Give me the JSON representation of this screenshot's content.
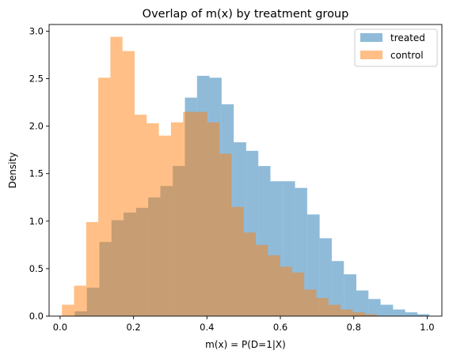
{
  "chart_data": {
    "type": "bar",
    "title": "Overlap of m(x) by treatment group",
    "xlabel": "m(x) = P(D=1|X)",
    "ylabel": "Density",
    "xlim": [
      -0.03,
      1.04
    ],
    "ylim": [
      0,
      3.07
    ],
    "xticks": [
      "0.0",
      "0.2",
      "0.4",
      "0.6",
      "0.8",
      "1.0"
    ],
    "xtick_values": [
      0.0,
      0.2,
      0.4,
      0.6,
      0.8,
      1.0
    ],
    "yticks": [
      "0.0",
      "0.5",
      "1.0",
      "1.5",
      "2.0",
      "2.5",
      "3.0"
    ],
    "ytick_values": [
      0.0,
      0.5,
      1.0,
      1.5,
      2.0,
      2.5,
      3.0
    ],
    "grid": false,
    "legend_position": "top-right",
    "series": [
      {
        "name": "treated",
        "color": "#1f77b4",
        "alpha": 0.5,
        "bins": [
          {
            "x0": 0.04,
            "x1": 0.073,
            "value": 0.05
          },
          {
            "x0": 0.073,
            "x1": 0.107,
            "value": 0.3
          },
          {
            "x0": 0.107,
            "x1": 0.14,
            "value": 0.78
          },
          {
            "x0": 0.14,
            "x1": 0.173,
            "value": 1.01
          },
          {
            "x0": 0.173,
            "x1": 0.207,
            "value": 1.09
          },
          {
            "x0": 0.207,
            "x1": 0.24,
            "value": 1.14
          },
          {
            "x0": 0.24,
            "x1": 0.273,
            "value": 1.25
          },
          {
            "x0": 0.273,
            "x1": 0.307,
            "value": 1.37
          },
          {
            "x0": 0.307,
            "x1": 0.34,
            "value": 1.58
          },
          {
            "x0": 0.34,
            "x1": 0.373,
            "value": 2.3
          },
          {
            "x0": 0.373,
            "x1": 0.407,
            "value": 2.53
          },
          {
            "x0": 0.407,
            "x1": 0.44,
            "value": 2.51
          },
          {
            "x0": 0.44,
            "x1": 0.473,
            "value": 2.23
          },
          {
            "x0": 0.473,
            "x1": 0.507,
            "value": 1.83
          },
          {
            "x0": 0.507,
            "x1": 0.54,
            "value": 1.74
          },
          {
            "x0": 0.54,
            "x1": 0.573,
            "value": 1.58
          },
          {
            "x0": 0.573,
            "x1": 0.607,
            "value": 1.42
          },
          {
            "x0": 0.607,
            "x1": 0.64,
            "value": 1.42
          },
          {
            "x0": 0.64,
            "x1": 0.673,
            "value": 1.35
          },
          {
            "x0": 0.673,
            "x1": 0.707,
            "value": 1.07
          },
          {
            "x0": 0.707,
            "x1": 0.74,
            "value": 0.82
          },
          {
            "x0": 0.74,
            "x1": 0.773,
            "value": 0.58
          },
          {
            "x0": 0.773,
            "x1": 0.807,
            "value": 0.44
          },
          {
            "x0": 0.807,
            "x1": 0.84,
            "value": 0.27
          },
          {
            "x0": 0.84,
            "x1": 0.873,
            "value": 0.18
          },
          {
            "x0": 0.873,
            "x1": 0.907,
            "value": 0.12
          },
          {
            "x0": 0.907,
            "x1": 0.94,
            "value": 0.07
          },
          {
            "x0": 0.94,
            "x1": 0.973,
            "value": 0.04
          },
          {
            "x0": 0.973,
            "x1": 1.006,
            "value": 0.02
          }
        ]
      },
      {
        "name": "control",
        "color": "#ff7f0e",
        "alpha": 0.5,
        "bins": [
          {
            "x0": 0.005,
            "x1": 0.038,
            "value": 0.12
          },
          {
            "x0": 0.038,
            "x1": 0.071,
            "value": 0.32
          },
          {
            "x0": 0.071,
            "x1": 0.104,
            "value": 0.99
          },
          {
            "x0": 0.104,
            "x1": 0.137,
            "value": 2.51
          },
          {
            "x0": 0.137,
            "x1": 0.17,
            "value": 2.94
          },
          {
            "x0": 0.17,
            "x1": 0.203,
            "value": 2.79
          },
          {
            "x0": 0.203,
            "x1": 0.236,
            "value": 2.12
          },
          {
            "x0": 0.236,
            "x1": 0.269,
            "value": 2.03
          },
          {
            "x0": 0.269,
            "x1": 0.302,
            "value": 1.9
          },
          {
            "x0": 0.302,
            "x1": 0.335,
            "value": 2.04
          },
          {
            "x0": 0.335,
            "x1": 0.368,
            "value": 2.15
          },
          {
            "x0": 0.368,
            "x1": 0.401,
            "value": 2.15
          },
          {
            "x0": 0.401,
            "x1": 0.434,
            "value": 2.04
          },
          {
            "x0": 0.434,
            "x1": 0.467,
            "value": 1.71
          },
          {
            "x0": 0.467,
            "x1": 0.5,
            "value": 1.15
          },
          {
            "x0": 0.5,
            "x1": 0.533,
            "value": 0.88
          },
          {
            "x0": 0.533,
            "x1": 0.566,
            "value": 0.75
          },
          {
            "x0": 0.566,
            "x1": 0.599,
            "value": 0.64
          },
          {
            "x0": 0.599,
            "x1": 0.632,
            "value": 0.52
          },
          {
            "x0": 0.632,
            "x1": 0.665,
            "value": 0.46
          },
          {
            "x0": 0.665,
            "x1": 0.698,
            "value": 0.28
          },
          {
            "x0": 0.698,
            "x1": 0.731,
            "value": 0.19
          },
          {
            "x0": 0.731,
            "x1": 0.764,
            "value": 0.12
          },
          {
            "x0": 0.764,
            "x1": 0.797,
            "value": 0.07
          },
          {
            "x0": 0.797,
            "x1": 0.83,
            "value": 0.04
          },
          {
            "x0": 0.83,
            "x1": 0.863,
            "value": 0.02
          }
        ]
      }
    ]
  }
}
